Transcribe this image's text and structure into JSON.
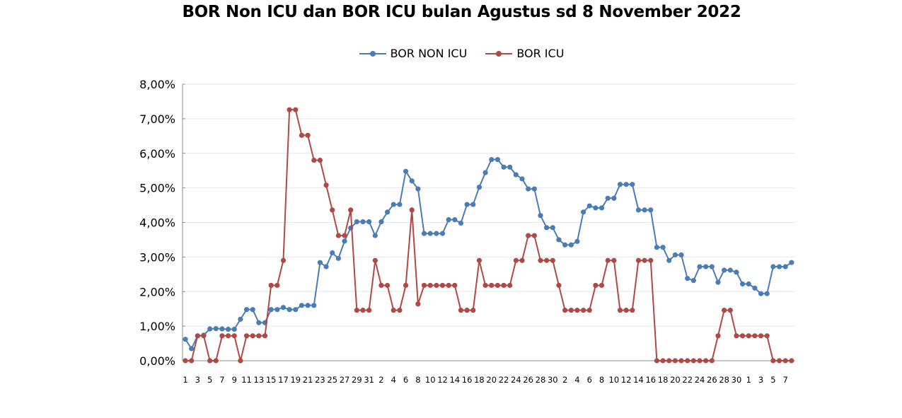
{
  "chart_data": {
    "type": "line",
    "title": "BOR Non ICU dan BOR ICU bulan Agustus sd 8 November 2022",
    "xlabel": "",
    "ylabel": "",
    "ylim": [
      0,
      8
    ],
    "y_unit": "%",
    "grid": true,
    "legend_position": "top",
    "x": [
      1,
      2,
      3,
      4,
      5,
      6,
      7,
      8,
      9,
      10,
      11,
      12,
      13,
      14,
      15,
      16,
      17,
      18,
      19,
      20,
      21,
      22,
      23,
      24,
      25,
      26,
      27,
      28,
      29,
      30,
      31,
      1,
      2,
      3,
      4,
      5,
      6,
      7,
      8,
      9,
      10,
      11,
      12,
      13,
      14,
      15,
      16,
      17,
      18,
      19,
      20,
      21,
      22,
      23,
      24,
      25,
      26,
      27,
      28,
      29,
      30,
      1,
      2,
      3,
      4,
      5,
      6,
      7,
      8,
      9,
      10,
      11,
      12,
      13,
      14,
      15,
      16,
      17,
      18,
      19,
      20,
      21,
      22,
      23,
      24,
      25,
      26,
      27,
      28,
      29,
      30,
      31,
      1,
      2,
      3,
      4,
      5,
      6,
      7,
      8
    ],
    "x_tick_labels": [
      "1",
      "3",
      "5",
      "7",
      "9",
      "11",
      "13",
      "15",
      "17",
      "19",
      "21",
      "23",
      "25",
      "27",
      "29",
      "31",
      "2",
      "4",
      "6",
      "8",
      "10",
      "12",
      "14",
      "16",
      "18",
      "20",
      "22",
      "24",
      "26",
      "28",
      "30",
      "2",
      "4",
      "6",
      "8",
      "10",
      "12",
      "14",
      "16",
      "18",
      "20",
      "22",
      "24",
      "26",
      "28",
      "30",
      "1",
      "3",
      "5",
      "7"
    ],
    "y_tick_labels": [
      "0,00%",
      "1,00%",
      "2,00%",
      "3,00%",
      "4,00%",
      "5,00%",
      "6,00%",
      "7,00%",
      "8,00%"
    ],
    "series": [
      {
        "name": "BOR NON ICU",
        "color": "#4a7db5",
        "values": [
          0.62,
          0.35,
          0.72,
          0.74,
          0.92,
          0.93,
          0.92,
          0.91,
          0.91,
          1.2,
          1.48,
          1.48,
          1.1,
          1.1,
          1.48,
          1.48,
          1.54,
          1.48,
          1.48,
          1.6,
          1.6,
          1.6,
          2.84,
          2.72,
          3.12,
          2.96,
          3.46,
          3.84,
          4.02,
          4.02,
          4.02,
          3.62,
          4.02,
          4.3,
          4.52,
          4.52,
          5.48,
          5.2,
          4.97,
          3.68,
          3.68,
          3.68,
          3.68,
          4.08,
          4.08,
          3.98,
          4.52,
          4.52,
          5.02,
          5.44,
          5.82,
          5.82,
          5.6,
          5.6,
          5.38,
          5.26,
          4.97,
          4.97,
          4.2,
          3.85,
          3.85,
          3.5,
          3.35,
          3.35,
          3.45,
          4.3,
          4.48,
          4.42,
          4.42,
          4.7,
          4.7,
          5.1,
          5.1,
          5.1,
          4.36,
          4.36,
          4.36,
          3.28,
          3.28,
          2.9,
          3.06,
          3.06,
          2.38,
          2.32,
          2.72,
          2.72,
          2.72,
          2.27,
          2.62,
          2.62,
          2.56,
          2.22,
          2.22,
          2.1,
          1.94,
          1.94,
          2.72,
          2.72,
          2.72,
          2.84
        ]
      },
      {
        "name": "BOR ICU",
        "color": "#b04845",
        "values": [
          0,
          0,
          0.72,
          0.72,
          0,
          0,
          0.72,
          0.72,
          0.72,
          0,
          0.72,
          0.72,
          0.72,
          0.72,
          2.18,
          2.18,
          2.9,
          7.26,
          7.26,
          6.52,
          6.52,
          5.8,
          5.8,
          5.08,
          4.36,
          3.62,
          3.62,
          4.36,
          1.46,
          1.46,
          1.46,
          2.9,
          2.18,
          2.18,
          1.46,
          1.46,
          2.18,
          4.36,
          1.64,
          2.18,
          2.18,
          2.18,
          2.18,
          2.18,
          2.18,
          1.46,
          1.46,
          1.46,
          2.9,
          2.18,
          2.18,
          2.18,
          2.18,
          2.18,
          2.9,
          2.9,
          3.62,
          3.62,
          2.9,
          2.9,
          2.9,
          2.18,
          1.46,
          1.46,
          1.46,
          1.46,
          1.46,
          2.18,
          2.18,
          2.9,
          2.9,
          1.46,
          1.46,
          1.46,
          2.9,
          2.9,
          2.9,
          0,
          0,
          0,
          0,
          0,
          0,
          0,
          0,
          0,
          0,
          0.72,
          1.46,
          1.46,
          0.72,
          0.72,
          0.72,
          0.72,
          0.72,
          0.72,
          0,
          0,
          0,
          0
        ]
      }
    ]
  },
  "colors": {
    "grid": "#e6e6e6",
    "axis": "#8c8c8c"
  }
}
